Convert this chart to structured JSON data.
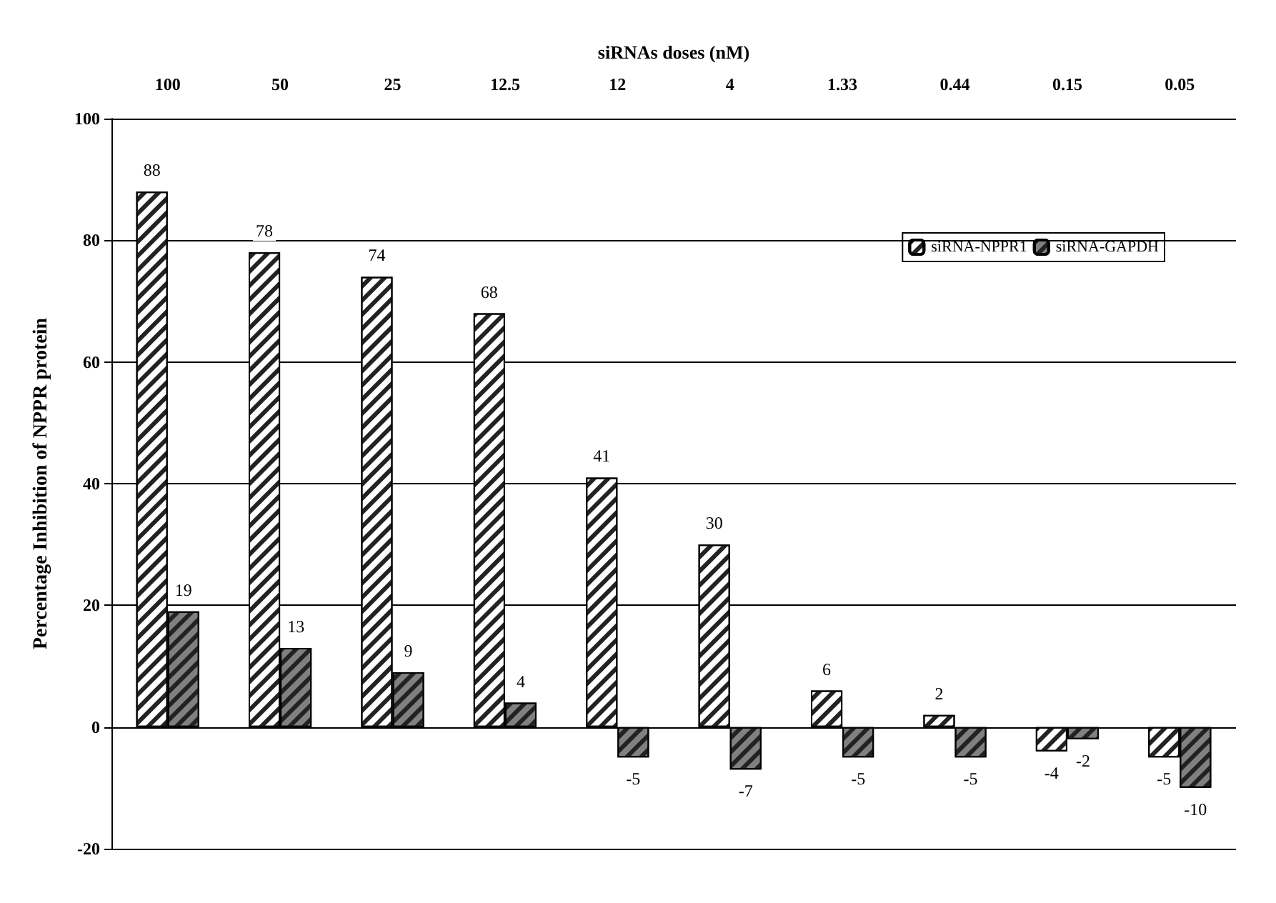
{
  "chart_data": {
    "type": "bar",
    "xlabel": "siRNAs doses (nM)",
    "ylabel": "Percentage Inhibition of NPPR protein",
    "categories": [
      "100",
      "50",
      "25",
      "12.5",
      "12",
      "4",
      "1.33",
      "0.44",
      "0.15",
      "0.05"
    ],
    "series": [
      {
        "name": "siRNA-NPPR1",
        "color": "#ffffff",
        "values": [
          88,
          78,
          74,
          68,
          41,
          30,
          6,
          2,
          -4,
          -5
        ]
      },
      {
        "name": "siRNA-GAPDH",
        "color": "#808080",
        "values": [
          19,
          13,
          9,
          4,
          -5,
          -7,
          -5,
          -5,
          -2,
          -10
        ]
      }
    ],
    "ylim": [
      -20,
      100
    ],
    "yticks": [
      -20,
      0,
      20,
      40,
      60,
      80,
      100
    ],
    "grid": "y",
    "legend": "top right",
    "data_labels": true
  }
}
